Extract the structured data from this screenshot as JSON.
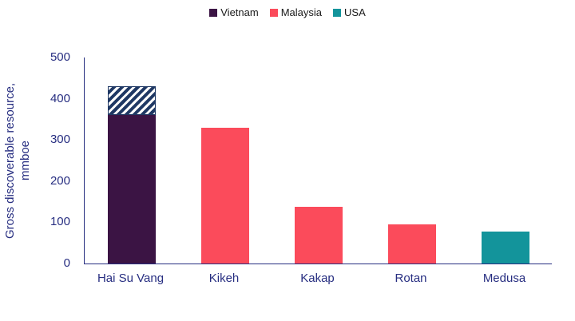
{
  "chart_data": {
    "type": "bar",
    "title": "",
    "ylabel": "Gross discoverable resource,\nmmboe",
    "xlabel": "",
    "ylim": [
      0,
      500
    ],
    "ytick_step": 100,
    "grid": false,
    "legend_position": "top",
    "legend": [
      {
        "label": "Vietnam",
        "color": "#3B1444"
      },
      {
        "label": "Malaysia",
        "color": "#FB4B5B"
      },
      {
        "label": "USA",
        "color": "#13949B"
      }
    ],
    "hatch_color": "#1F3864",
    "axis_text_color": "#272E81",
    "categories": [
      "Hai Su Vang",
      "Kikeh",
      "Kakap",
      "Rotan",
      "Medusa"
    ],
    "bars": [
      {
        "category": "Hai Su Vang",
        "country": "Vietnam",
        "value": 360,
        "hatched_extra_to": 430
      },
      {
        "category": "Kikeh",
        "country": "Malaysia",
        "value": 330
      },
      {
        "category": "Kakap",
        "country": "Malaysia",
        "value": 138
      },
      {
        "category": "Rotan",
        "country": "Malaysia",
        "value": 95
      },
      {
        "category": "Medusa",
        "country": "USA",
        "value": 78
      }
    ]
  }
}
